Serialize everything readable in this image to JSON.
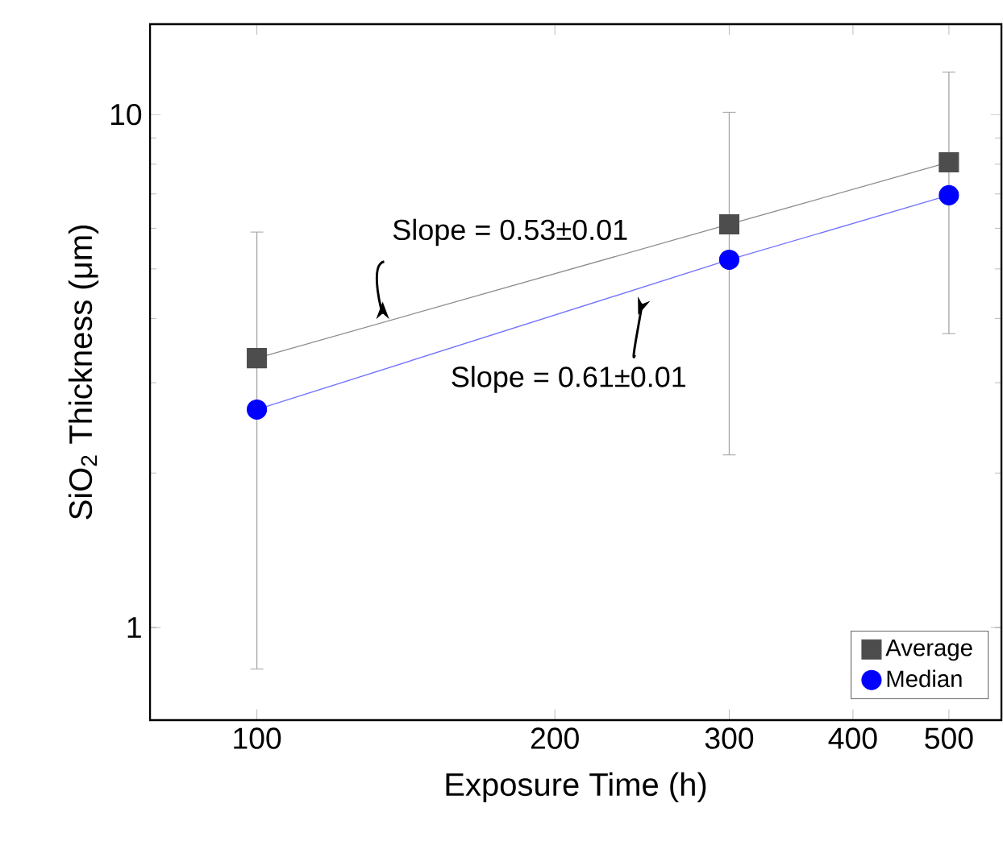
{
  "chart_data": {
    "type": "line",
    "xlabel": "Exposure Time (h)",
    "ylabel": "SiO$_{2}$ Thickness (μm)",
    "x": [
      100,
      300,
      500
    ],
    "series": [
      {
        "name": "Average",
        "color": "#4d4d4d",
        "marker": "square",
        "values": [
          3.35,
          6.11,
          8.07
        ],
        "errors": [
          [
            0.83,
            5.9
          ],
          [
            2.17,
            10.1
          ],
          [
            3.74,
            12.1
          ]
        ]
      },
      {
        "name": "Median",
        "color": "#0000ff",
        "marker": "circle",
        "values": [
          2.66,
          5.21,
          6.96
        ]
      }
    ],
    "annotations": [
      {
        "text": "Slope = 0.53±0.01",
        "x": 133,
        "y": 3.9
      },
      {
        "text": "Slope = 0.61±0.01",
        "x": 252,
        "y": 4.5
      }
    ],
    "log": "xy",
    "xlim": [
      78,
      565
    ],
    "ylim": [
      0.66,
      15
    ],
    "xticks": [
      100,
      200,
      300,
      400,
      500
    ],
    "yticks": [
      1,
      10
    ],
    "legend": "bottom right",
    "grid": false
  }
}
